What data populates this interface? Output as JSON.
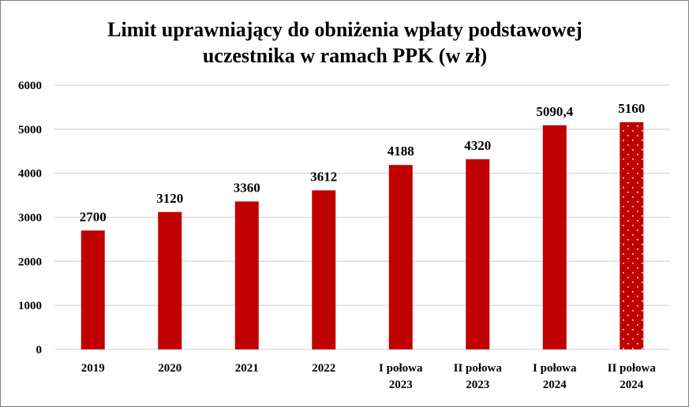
{
  "chart_data": {
    "type": "bar",
    "title": [
      "Limit uprawniający do obniżenia wpłaty podstawowej",
      "uczestnika w ramach PPK (w zł)"
    ],
    "categories": [
      [
        "2019"
      ],
      [
        "2020"
      ],
      [
        "2021"
      ],
      [
        "2022"
      ],
      [
        "I połowa",
        "2023"
      ],
      [
        "II połowa",
        "2023"
      ],
      [
        "I połowa",
        "2024"
      ],
      [
        "II połowa",
        "2024"
      ]
    ],
    "values": [
      2700,
      3120,
      3360,
      3612,
      4188,
      4320,
      5090.4,
      5160
    ],
    "data_labels": [
      "2700",
      "3120",
      "3360",
      "3612",
      "4188",
      "4320",
      "5090,4",
      "5160"
    ],
    "patterned": [
      false,
      false,
      false,
      false,
      false,
      false,
      false,
      true
    ],
    "ylim": [
      0,
      6000
    ],
    "yticks": [
      0,
      1000,
      2000,
      3000,
      4000,
      5000,
      6000
    ],
    "grid": true,
    "legend": "none",
    "bar_color": "#C00000",
    "pattern_dot_color": "#FFFFFF",
    "grid_color": "#D9D9D9"
  }
}
